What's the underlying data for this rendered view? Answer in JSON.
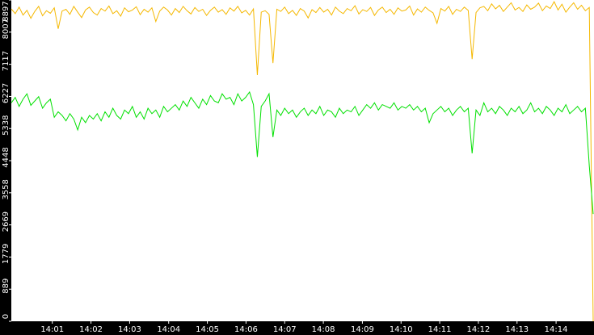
{
  "chart_data": {
    "type": "line",
    "xlim": [
      0,
      149
    ],
    "xticks": [
      {
        "value": 10.5,
        "label": "14:01"
      },
      {
        "value": 20.4,
        "label": "14:02"
      },
      {
        "value": 30.3,
        "label": "14:03"
      },
      {
        "value": 40.3,
        "label": "14:04"
      },
      {
        "value": 50.2,
        "label": "14:05"
      },
      {
        "value": 60.1,
        "label": "14:06"
      },
      {
        "value": 70.0,
        "label": "14:07"
      },
      {
        "value": 79.9,
        "label": "14:08"
      },
      {
        "value": 89.9,
        "label": "14:09"
      },
      {
        "value": 99.8,
        "label": "14:10"
      },
      {
        "value": 109.7,
        "label": "14:11"
      },
      {
        "value": 119.6,
        "label": "14:12"
      },
      {
        "value": 129.5,
        "label": "14:13"
      },
      {
        "value": 139.5,
        "label": "14:14"
      }
    ],
    "ylim": [
      0,
      8897
    ],
    "yticks": [
      0,
      889,
      1779,
      2669,
      3558,
      4448,
      5338,
      6227,
      7117,
      8007,
      8897
    ],
    "grid": false,
    "series": [
      {
        "color": "#f5b800",
        "values": [
          8650,
          8520,
          8700,
          8480,
          8610,
          8390,
          8580,
          8720,
          8460,
          8600,
          8530,
          8680,
          8100,
          8590,
          8640,
          8500,
          8720,
          8560,
          8410,
          8620,
          8700,
          8550,
          8480,
          8660,
          8590,
          8730,
          8520,
          8600,
          8450,
          8680,
          8570,
          8620,
          8710,
          8490,
          8640,
          8560,
          8680,
          8300,
          8590,
          8700,
          8620,
          8480,
          8660,
          8550,
          8720,
          8600,
          8510,
          8690,
          8580,
          8640,
          8470,
          8610,
          8700,
          8560,
          8630,
          8500,
          8680,
          8590,
          8720,
          8540,
          8610,
          8480,
          8650,
          6820,
          8560,
          8600,
          8500,
          7150,
          8640,
          8580,
          8700,
          8520,
          8610,
          8470,
          8660,
          8590,
          8400,
          8630,
          8550,
          8690,
          8560,
          8640,
          8480,
          8700,
          8590,
          8520,
          8660,
          8600,
          8740,
          8510,
          8630,
          8580,
          8690,
          8470,
          8620,
          8700,
          8550,
          8640,
          8500,
          8680,
          8590,
          8620,
          8730,
          8480,
          8650,
          8560,
          8700,
          8610,
          8540,
          8250,
          8660,
          8590,
          8720,
          8500,
          8640,
          8580,
          8700,
          8610,
          7260,
          8550,
          8680,
          8720,
          8600,
          8790,
          8650,
          8750,
          8580,
          8700,
          8820,
          8620,
          8690,
          8580,
          8760,
          8640,
          8700,
          8810,
          8600,
          8730,
          8660,
          8850,
          8620,
          8780,
          8560,
          8700,
          8820,
          8640,
          8750,
          8600,
          8690,
          0
        ]
      },
      {
        "color": "#00e000",
        "values": [
          6050,
          6200,
          5950,
          6150,
          6300,
          5980,
          6100,
          6220,
          5900,
          6050,
          6150,
          5650,
          5800,
          5700,
          5550,
          5750,
          5600,
          5300,
          5650,
          5500,
          5700,
          5600,
          5750,
          5550,
          5800,
          5650,
          5900,
          5700,
          5600,
          5850,
          5750,
          5950,
          5650,
          5800,
          5600,
          5900,
          5750,
          5850,
          5650,
          5950,
          5800,
          5900,
          6000,
          5850,
          6100,
          5950,
          6200,
          6050,
          5900,
          6150,
          6000,
          6250,
          6100,
          6050,
          6300,
          6150,
          6200,
          6000,
          6300,
          6100,
          6200,
          6350,
          6000,
          4550,
          5950,
          6100,
          6300,
          5100,
          5850,
          5700,
          5900,
          5750,
          5850,
          5650,
          5800,
          5900,
          5700,
          5850,
          5750,
          5950,
          5700,
          5850,
          5800,
          5650,
          5900,
          5750,
          5850,
          5800,
          5950,
          5700,
          5850,
          6000,
          5900,
          6050,
          5850,
          6000,
          5950,
          5900,
          6050,
          5850,
          5950,
          5900,
          6000,
          5850,
          5950,
          5800,
          5900,
          5500,
          5750,
          5850,
          5950,
          5800,
          5900,
          5700,
          5850,
          5950,
          5800,
          5900,
          4650,
          5850,
          5700,
          6050,
          5800,
          5900,
          5750,
          5950,
          5850,
          5700,
          5900,
          5800,
          5950,
          5750,
          5850,
          6050,
          5800,
          5900,
          5750,
          5950,
          5850,
          5700,
          5900,
          5800,
          6000,
          5750,
          5850,
          5950,
          5800,
          5900,
          4310,
          2970
        ]
      }
    ]
  }
}
